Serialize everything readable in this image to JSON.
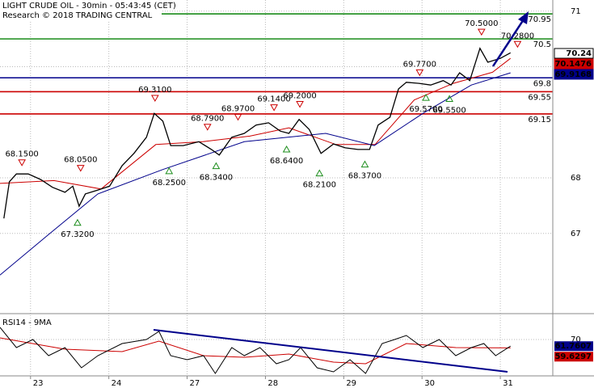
{
  "chart_data": {
    "type": "line",
    "title": "LIGHT CRUDE OIL - 30min - 05:43:45 (CET)",
    "subtitle": "Research © 2018 TRADING CENTRAL",
    "xlim": [
      -0.39,
      6.67
    ],
    "xticks": [
      {
        "value": 0,
        "label": "23"
      },
      {
        "value": 1,
        "label": "24"
      },
      {
        "value": 2,
        "label": "27"
      },
      {
        "value": 3,
        "label": "28"
      },
      {
        "value": 4,
        "label": "29"
      },
      {
        "value": 5,
        "label": "30"
      },
      {
        "value": 6,
        "label": "31"
      }
    ],
    "ylim": [
      65.6,
      71.2
    ],
    "yticks": [
      67,
      68,
      70,
      71
    ],
    "grid": true,
    "price": {
      "color": "#000000",
      "x": [
        -0.34,
        -0.27,
        -0.18,
        -0.03,
        0.13,
        0.28,
        0.44,
        0.54,
        0.62,
        0.7,
        0.86,
        1.01,
        1.17,
        1.32,
        1.48,
        1.58,
        1.69,
        1.79,
        1.95,
        2.15,
        2.31,
        2.41,
        2.57,
        2.73,
        2.88,
        3.04,
        3.19,
        3.3,
        3.43,
        3.56,
        3.71,
        3.87,
        4.02,
        4.18,
        4.33,
        4.44,
        4.59,
        4.7,
        4.8,
        4.96,
        5.11,
        5.27,
        5.37,
        5.48,
        5.61,
        5.74,
        5.84,
        6.0,
        6.13
      ],
      "values": [
        67.27,
        67.93,
        68.07,
        68.07,
        67.97,
        67.83,
        67.74,
        67.85,
        67.49,
        67.71,
        67.78,
        67.85,
        68.22,
        68.44,
        68.73,
        69.16,
        69.02,
        68.58,
        68.58,
        68.65,
        68.51,
        68.41,
        68.73,
        68.8,
        68.95,
        68.99,
        68.84,
        68.8,
        69.05,
        68.87,
        68.44,
        68.61,
        68.54,
        68.51,
        68.51,
        68.95,
        69.09,
        69.6,
        69.72,
        69.7,
        69.67,
        69.75,
        69.67,
        69.89,
        69.75,
        70.33,
        70.08,
        70.15,
        70.25
      ]
    },
    "averages": [
      {
        "color": "#cc0000",
        "x": [
          -0.39,
          0.3,
          0.9,
          1.6,
          2.2,
          2.8,
          3.3,
          3.9,
          4.4,
          4.9,
          5.4,
          5.9,
          6.13
        ],
        "values": [
          67.9,
          67.95,
          67.8,
          68.6,
          68.65,
          68.75,
          68.9,
          68.6,
          68.6,
          69.4,
          69.7,
          69.9,
          70.15
        ]
      },
      {
        "color": "#00008b",
        "x": [
          -0.39,
          0.23,
          0.86,
          1.69,
          2.73,
          3.77,
          4.39,
          5.01,
          5.63,
          6.13
        ],
        "values": [
          66.25,
          66.98,
          67.71,
          68.15,
          68.65,
          68.8,
          68.58,
          69.16,
          69.67,
          69.89
        ]
      }
    ],
    "levels": [
      {
        "value": 70.95,
        "color": "#1a8c1a"
      },
      {
        "value": 70.5,
        "color": "#1a8c1a"
      },
      {
        "value": 69.8,
        "color": "#00008b"
      },
      {
        "value": 69.55,
        "color": "#cc0000"
      },
      {
        "value": 69.15,
        "color": "#cc0000"
      }
    ],
    "price_tags": [
      {
        "value": 70.24,
        "color": "#000000",
        "background": "#ffffff"
      },
      {
        "value": 70.1476,
        "color": "#ffffff",
        "background": "#cc0000"
      },
      {
        "value": 69.9168,
        "color": "#ffffff",
        "background": "#00008b"
      }
    ],
    "pivots": [
      {
        "x": -0.11,
        "value": 68.15,
        "label": "68.1500",
        "direction": "high"
      },
      {
        "x": 0.64,
        "value": 68.05,
        "label": "68.0500",
        "direction": "high"
      },
      {
        "x": 0.6,
        "value": 67.32,
        "label": "67.3200",
        "direction": "low"
      },
      {
        "x": 1.59,
        "value": 69.31,
        "label": "69.3100",
        "direction": "high"
      },
      {
        "x": 1.77,
        "value": 68.25,
        "label": "68.2500",
        "direction": "low"
      },
      {
        "x": 2.26,
        "value": 68.79,
        "label": "68.7900",
        "direction": "high"
      },
      {
        "x": 2.37,
        "value": 68.34,
        "label": "68.3400",
        "direction": "low"
      },
      {
        "x": 2.65,
        "value": 68.97,
        "label": "68.9700",
        "direction": "high"
      },
      {
        "x": 3.11,
        "value": 69.14,
        "label": "69.1400",
        "direction": "high"
      },
      {
        "x": 3.27,
        "value": 68.64,
        "label": "68.6400",
        "direction": "low"
      },
      {
        "x": 3.44,
        "value": 69.2,
        "label": "69.2000",
        "direction": "high"
      },
      {
        "x": 3.69,
        "value": 68.21,
        "label": "68.2100",
        "direction": "low"
      },
      {
        "x": 4.27,
        "value": 68.37,
        "label": "68.3700",
        "direction": "low"
      },
      {
        "x": 4.97,
        "value": 69.77,
        "label": "69.7700",
        "direction": "high"
      },
      {
        "x": 5.05,
        "value": 69.57,
        "label": "69.5700",
        "direction": "low"
      },
      {
        "x": 5.35,
        "value": 69.55,
        "label": "69.5500",
        "direction": "low"
      },
      {
        "x": 5.76,
        "value": 70.5,
        "label": "70.5000",
        "direction": "high"
      },
      {
        "x": 6.22,
        "value": 70.28,
        "label": "70.2800",
        "direction": "high"
      }
    ],
    "rsi": {
      "title": "RSI14 - 9MA",
      "ylim": [
        25,
        95
      ],
      "yticks": [
        70
      ],
      "line": {
        "color": "#000000",
        "x": [
          -0.39,
          -0.18,
          0.03,
          0.23,
          0.44,
          0.65,
          0.86,
          1.17,
          1.48,
          1.64,
          1.79,
          2.0,
          2.21,
          2.36,
          2.57,
          2.73,
          2.93,
          3.14,
          3.3,
          3.45,
          3.66,
          3.87,
          4.08,
          4.28,
          4.49,
          4.65,
          4.8,
          5.01,
          5.22,
          5.43,
          5.63,
          5.79,
          5.94,
          6.13
        ],
        "values": [
          85,
          60,
          70,
          50,
          60,
          35,
          50,
          65,
          70,
          80,
          50,
          45,
          50,
          28,
          60,
          50,
          60,
          40,
          45,
          60,
          35,
          30,
          45,
          28,
          65,
          70,
          75,
          60,
          70,
          50,
          60,
          65,
          50,
          61.76
        ]
      },
      "ma": {
        "color": "#cc0000",
        "x": [
          -0.39,
          0.44,
          1.17,
          1.64,
          2.21,
          2.73,
          3.3,
          3.87,
          4.28,
          4.8,
          5.43,
          6.13
        ],
        "values": [
          72,
          58,
          55,
          68,
          50,
          48,
          52,
          42,
          40,
          65,
          60,
          59.63
        ]
      },
      "tags": [
        {
          "value": 61.7607,
          "color": "#ffffff",
          "background": "#00008b"
        },
        {
          "value": 59.6297,
          "color": "#ffffff",
          "background": "#cc0000"
        }
      ]
    }
  }
}
